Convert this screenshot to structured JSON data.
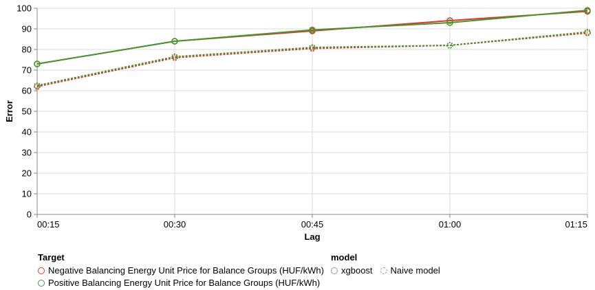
{
  "chart_data": {
    "type": "line",
    "xlabel": "Lag",
    "ylabel": "Error",
    "categories": [
      "00:15",
      "00:30",
      "00:45",
      "01:00",
      "01:15"
    ],
    "ylim": [
      0,
      100
    ],
    "yticks": [
      0,
      10,
      20,
      30,
      40,
      50,
      60,
      70,
      80,
      90,
      100
    ],
    "grid": true,
    "legend_placement": "bottom-left",
    "series": [
      {
        "target": "Negative Balancing Energy Unit Price for Balance Groups (HUF/kWh)",
        "model": "xgboost",
        "color": "#e8312a",
        "values": [
          73,
          84,
          89,
          94,
          98.5
        ]
      },
      {
        "target": "Positive Balancing Energy Unit Price for Balance Groups (HUF/kWh)",
        "model": "xgboost",
        "color": "#3f9b2b",
        "values": [
          73,
          84,
          89.5,
          93,
          99
        ]
      },
      {
        "target": "Negative Balancing Energy Unit Price for Balance Groups (HUF/kWh)",
        "model": "Naive model",
        "color": "#e8312a",
        "values": [
          62,
          76,
          80.5,
          82,
          88
        ]
      },
      {
        "target": "Positive Balancing Energy Unit Price for Balance Groups (HUF/kWh)",
        "model": "Naive model",
        "color": "#3f9b2b",
        "values": [
          62.5,
          76.5,
          81,
          82,
          88.5
        ]
      }
    ]
  },
  "legend": {
    "target_title": "Target",
    "target_items": [
      {
        "label": "Negative Balancing Energy Unit Price for Balance Groups (HUF/kWh)",
        "color": "#e8312a"
      },
      {
        "label": "Positive Balancing Energy Unit Price for Balance Groups (HUF/kWh)",
        "color": "#3f9b2b"
      }
    ],
    "model_title": "model",
    "model_items": [
      {
        "label": "xgboost"
      },
      {
        "label": "Naive model"
      }
    ]
  }
}
